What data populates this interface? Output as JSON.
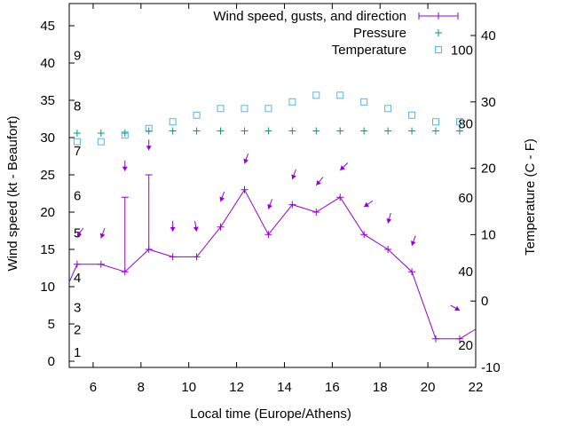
{
  "chart_data": {
    "type": "line",
    "xlabel": "Local time (Europe/Athens)",
    "ylabel": "Wind speed (kt - Beaufort)",
    "y2label": "Temperature (C - F)",
    "xlim": [
      5,
      22
    ],
    "ylim": [
      0,
      45
    ],
    "y2lim": [
      -10,
      40
    ],
    "x_ticks": [
      6,
      8,
      10,
      12,
      14,
      16,
      18,
      20,
      22
    ],
    "y_ticks": [
      0,
      5,
      10,
      15,
      20,
      25,
      30,
      35,
      40,
      45
    ],
    "y2_ticks": [
      -10,
      0,
      10,
      20,
      30,
      40
    ],
    "beaufort_labels": [
      {
        "label": "1",
        "kt": 1.2
      },
      {
        "label": "2",
        "kt": 4.2
      },
      {
        "label": "3",
        "kt": 7.2
      },
      {
        "label": "4",
        "kt": 11.2
      },
      {
        "label": "5",
        "kt": 17.2
      },
      {
        "label": "6",
        "kt": 22.2
      },
      {
        "label": "7",
        "kt": 28.2
      },
      {
        "label": "8",
        "kt": 34.2
      },
      {
        "label": "9",
        "kt": 41
      }
    ],
    "fahrenheit_labels": [
      {
        "label": "20",
        "f": 20
      },
      {
        "label": "40",
        "f": 40
      },
      {
        "label": "60",
        "f": 60
      },
      {
        "label": "80",
        "f": 80
      },
      {
        "label": "100",
        "f": 100
      }
    ],
    "legend": {
      "placement": "top-right",
      "entries": [
        "Wind speed, gusts, and direction",
        "Pressure",
        "Temperature"
      ]
    },
    "series": [
      {
        "name": "Wind speed, gusts, and direction",
        "color": "#9400d3",
        "x": [
          5.33,
          6.33,
          7.33,
          8.33,
          9.33,
          10.33,
          11.33,
          12.33,
          13.33,
          14.33,
          15.33,
          16.33,
          17.33,
          18.33,
          19.33,
          20.33,
          21.33
        ],
        "values": [
          13,
          13,
          12,
          15,
          14,
          14,
          18,
          23,
          17,
          21,
          20,
          22,
          17,
          15,
          12,
          3,
          3
        ],
        "line_start": [
          5,
          10.6
        ],
        "line_end": [
          22,
          4.3
        ],
        "gusts": [
          {
            "x": 7.33,
            "value": 22
          },
          {
            "x": 8.33,
            "value": 25
          }
        ],
        "arrows": [
          {
            "x": 5.33,
            "kt": 16.7,
            "toward_deg": 215
          },
          {
            "x": 6.33,
            "kt": 16.5,
            "toward_deg": 200
          },
          {
            "x": 7.33,
            "kt": 25.5,
            "toward_deg": 180
          },
          {
            "x": 8.33,
            "kt": 28.3,
            "toward_deg": 180
          },
          {
            "x": 9.33,
            "kt": 17.4,
            "toward_deg": 180
          },
          {
            "x": 10.33,
            "kt": 17.4,
            "toward_deg": 170
          },
          {
            "x": 11.33,
            "kt": 21.4,
            "toward_deg": 200
          },
          {
            "x": 12.33,
            "kt": 26.5,
            "toward_deg": 200
          },
          {
            "x": 13.33,
            "kt": 20.4,
            "toward_deg": 200
          },
          {
            "x": 14.33,
            "kt": 24.4,
            "toward_deg": 200
          },
          {
            "x": 15.33,
            "kt": 23.6,
            "toward_deg": 220
          },
          {
            "x": 16.33,
            "kt": 25.6,
            "toward_deg": 225
          },
          {
            "x": 17.33,
            "kt": 20.7,
            "toward_deg": 235
          },
          {
            "x": 18.33,
            "kt": 18.5,
            "toward_deg": 195
          },
          {
            "x": 19.33,
            "kt": 15.5,
            "toward_deg": 200
          },
          {
            "x": 21.33,
            "kt": 6.8,
            "toward_deg": 120
          }
        ]
      },
      {
        "name": "Pressure",
        "color": "#009e73",
        "x": [
          5.33,
          6.33,
          7.33,
          8.33,
          9.33,
          10.33,
          11.33,
          12.33,
          13.33,
          14.33,
          15.33,
          16.33,
          17.33,
          18.33,
          19.33,
          20.33,
          21.33
        ],
        "values_on_left_axis": [
          30.6,
          30.6,
          30.6,
          30.9,
          30.9,
          30.9,
          30.9,
          30.9,
          30.9,
          30.9,
          30.9,
          30.9,
          30.9,
          30.9,
          30.9,
          30.9,
          30.9
        ]
      },
      {
        "name": "Temperature",
        "color": "#56b4e9",
        "x": [
          5.33,
          6.33,
          7.33,
          8.33,
          9.33,
          10.33,
          11.33,
          12.33,
          13.33,
          14.33,
          15.33,
          16.33,
          17.33,
          18.33,
          19.33,
          20.33,
          21.33
        ],
        "values": [
          24,
          24,
          25,
          26,
          27,
          28,
          29,
          29,
          29,
          30,
          31,
          31,
          30,
          29,
          28,
          27,
          27
        ]
      }
    ]
  }
}
